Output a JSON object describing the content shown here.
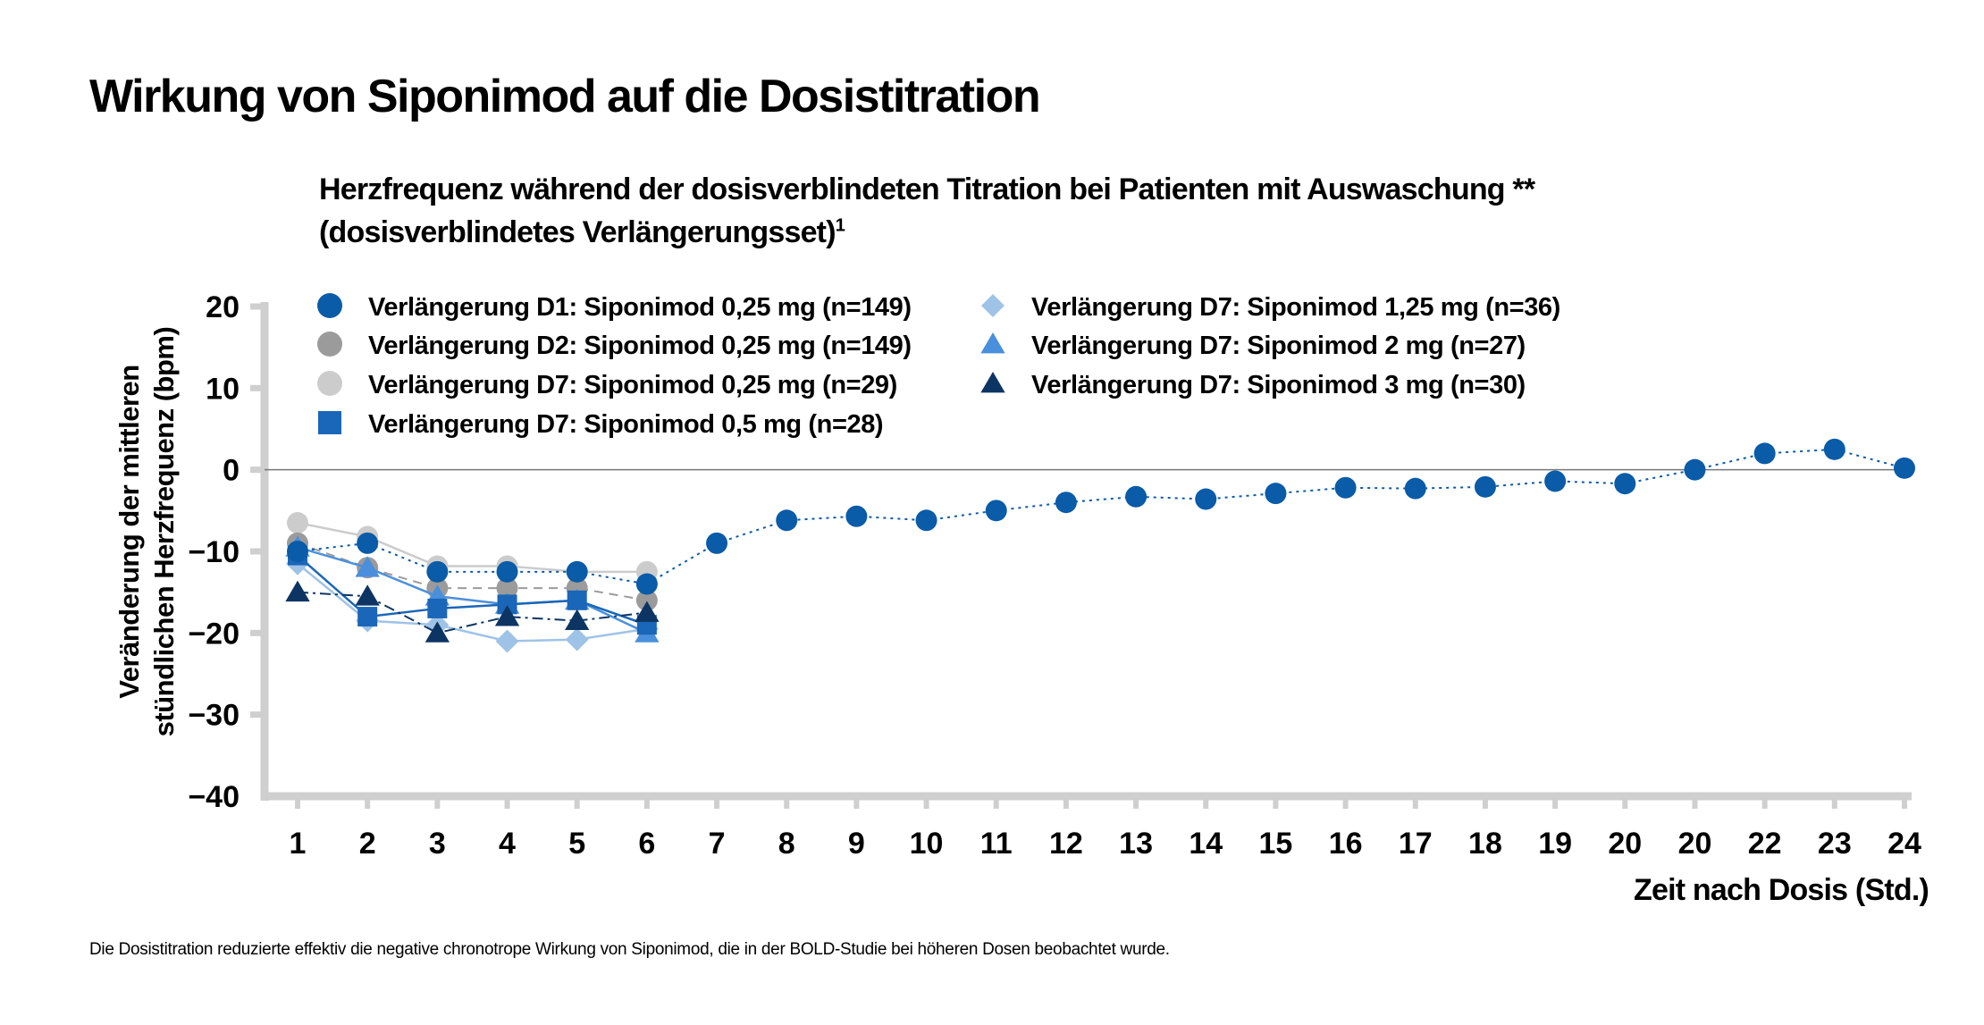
{
  "heading": "Wirkung von Siponimod auf die Dosistitration",
  "subtitle": {
    "line1": "Herzfrequenz während der dosisverblindeten Titration bei Patienten mit Auswaschung **",
    "line2": "(dosisverblindetes Verlängerungsset)",
    "sup": "1"
  },
  "footnote": "Die Dosistitration reduzierte effektiv die negative chronotrope Wirkung von Siponimod, die in der BOLD-Studie bei höheren Dosen beobachtet wurde.",
  "chart_data": {
    "type": "line",
    "xlabel": "Zeit nach Dosis (Std.)",
    "ylabel_line1": "Veränderung der mittleren",
    "ylabel_line2": "stündlichen Herzfrequenz (bpm)",
    "ylim": [
      -40,
      20
    ],
    "yticks": [
      20,
      10,
      0,
      -10,
      -20,
      -30,
      -40
    ],
    "ytick_labels": [
      "20",
      "10",
      "0",
      "−10",
      "−20",
      "−30",
      "−40"
    ],
    "x_categories": [
      "1",
      "2",
      "3",
      "4",
      "5",
      "6",
      "7",
      "8",
      "9",
      "10",
      "11",
      "12",
      "13",
      "14",
      "15",
      "16",
      "17",
      "18",
      "19",
      "20",
      "20",
      "22",
      "23",
      "24"
    ],
    "grid": false,
    "legend_position": "top-left",
    "series": [
      {
        "name": "Verlängerung D1: Siponimod 0,25 mg (n=149)",
        "marker": "circle",
        "color": "#0a5ba8",
        "line_style": "dotted",
        "values": [
          -10,
          -9,
          -12.5,
          -12.5,
          -12.5,
          -14,
          -9,
          -6.2,
          -5.7,
          -6.2,
          -5,
          -4,
          -3.3,
          -3.6,
          -2.9,
          -2.2,
          -2.3,
          -2.1,
          -1.4,
          -1.7,
          0,
          2,
          2.5,
          0.2
        ]
      },
      {
        "name": "Verlängerung D2: Siponimod 0,25 mg (n=149)",
        "marker": "circle",
        "color": "#9b9b9b",
        "line_style": "dashed",
        "values": [
          -9,
          -12,
          -14.5,
          -14.5,
          -14.5,
          -16
        ]
      },
      {
        "name": "Verlängerung D7: Siponimod 0,25 mg (n=29)",
        "marker": "circle",
        "color": "#cccccc",
        "line_style": "solid",
        "values": [
          -6.5,
          -8.2,
          -11.8,
          -11.8,
          -12.5,
          -12.5
        ]
      },
      {
        "name": "Verlängerung D7: Siponimod 0,5 mg (n=28)",
        "marker": "square",
        "color": "#1a66b8",
        "line_style": "solid",
        "values": [
          -10.5,
          -18,
          -17,
          -16.5,
          -16,
          -19
        ]
      },
      {
        "name": "Verlängerung D7: Siponimod 1,25 mg (n=36)",
        "marker": "diamond",
        "color": "#9fc3e6",
        "line_style": "solid",
        "values": [
          -11.5,
          -18.5,
          -19,
          -21,
          -20.8,
          -19.5
        ]
      },
      {
        "name": "Verlängerung D7: Siponimod 2 mg (n=27)",
        "marker": "triangle",
        "color": "#4a8fdb",
        "line_style": "solid",
        "values": [
          -9.5,
          -12,
          -15.5,
          -16.5,
          -16,
          -20
        ]
      },
      {
        "name": "Verlängerung D7: Siponimod 3 mg (n=30)",
        "marker": "triangle",
        "color": "#0d3563",
        "line_style": "dashdot",
        "values": [
          -15,
          -15.5,
          -20,
          -18,
          -18.5,
          -17.5
        ]
      }
    ]
  }
}
